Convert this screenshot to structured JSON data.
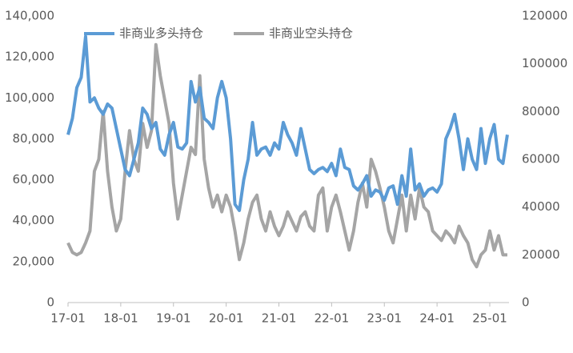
{
  "chart_data": {
    "type": "line",
    "x": [
      "17-01",
      "17-02",
      "17-03",
      "17-04",
      "17-05",
      "17-06",
      "17-07",
      "17-08",
      "17-09",
      "17-10",
      "17-11",
      "17-12",
      "18-01",
      "18-02",
      "18-03",
      "18-04",
      "18-05",
      "18-06",
      "18-07",
      "18-08",
      "18-09",
      "18-10",
      "18-11",
      "18-12",
      "19-01",
      "19-02",
      "19-03",
      "19-04",
      "19-05",
      "19-06",
      "19-07",
      "19-08",
      "19-09",
      "19-10",
      "19-11",
      "19-12",
      "20-01",
      "20-02",
      "20-03",
      "20-04",
      "20-05",
      "20-06",
      "20-07",
      "20-08",
      "20-09",
      "20-10",
      "20-11",
      "20-12",
      "21-01",
      "21-02",
      "21-03",
      "21-04",
      "21-05",
      "21-06",
      "21-07",
      "21-08",
      "21-09",
      "21-10",
      "21-11",
      "21-12",
      "22-01",
      "22-02",
      "22-03",
      "22-04",
      "22-05",
      "22-06",
      "22-07",
      "22-08",
      "22-09",
      "22-10",
      "22-11",
      "22-12",
      "23-01",
      "23-02",
      "23-03",
      "23-04",
      "23-05",
      "23-06",
      "23-07",
      "23-08",
      "23-09",
      "23-10",
      "23-11",
      "23-12",
      "24-01",
      "24-02",
      "24-03",
      "24-04",
      "24-05",
      "24-06",
      "24-07",
      "24-08",
      "24-09",
      "24-10",
      "24-11",
      "24-12",
      "25-01",
      "25-02",
      "25-03",
      "25-04",
      "25-05"
    ],
    "series": [
      {
        "name": "非商业多头持仓",
        "color": "#5b9bd5",
        "values": [
          82000,
          90000,
          105000,
          110000,
          130000,
          98000,
          100000,
          95000,
          92000,
          97000,
          95000,
          85000,
          75000,
          65000,
          62000,
          70000,
          78000,
          95000,
          92000,
          85000,
          88000,
          75000,
          72000,
          82000,
          88000,
          76000,
          75000,
          78000,
          108000,
          98000,
          105000,
          90000,
          88000,
          85000,
          100000,
          108000,
          100000,
          80000,
          48000,
          45000,
          60000,
          70000,
          88000,
          72000,
          75000,
          76000,
          72000,
          78000,
          75000,
          88000,
          82000,
          78000,
          72000,
          85000,
          75000,
          65000,
          63000,
          65000,
          66000,
          64000,
          68000,
          62000,
          75000,
          66000,
          65000,
          57000,
          55000,
          58000,
          62000,
          52000,
          55000,
          54000,
          50000,
          56000,
          57000,
          48000,
          62000,
          52000,
          75000,
          55000,
          58000,
          52000,
          55000,
          56000,
          54000,
          58000,
          80000,
          85000,
          92000,
          80000,
          65000,
          80000,
          70000,
          65000,
          85000,
          68000,
          80000,
          87000,
          70000,
          68000,
          82000
        ]
      },
      {
        "name": "非商业空头持仓",
        "color": "#a5a5a5",
        "axis": "y2",
        "values": [
          25000,
          21000,
          20000,
          21000,
          25000,
          30000,
          55000,
          60000,
          80000,
          55000,
          40000,
          30000,
          35000,
          55000,
          72000,
          60000,
          55000,
          75000,
          65000,
          72000,
          108000,
          95000,
          85000,
          75000,
          50000,
          35000,
          45000,
          55000,
          65000,
          62000,
          95000,
          60000,
          48000,
          40000,
          45000,
          38000,
          45000,
          40000,
          30000,
          18000,
          25000,
          35000,
          42000,
          45000,
          35000,
          30000,
          38000,
          32000,
          28000,
          32000,
          38000,
          34000,
          30000,
          36000,
          38000,
          32000,
          30000,
          45000,
          48000,
          30000,
          40000,
          45000,
          38000,
          30000,
          22000,
          30000,
          42000,
          50000,
          40000,
          60000,
          55000,
          48000,
          40000,
          30000,
          25000,
          35000,
          45000,
          30000,
          45000,
          35000,
          48000,
          40000,
          38000,
          30000,
          28000,
          26000,
          30000,
          28000,
          25000,
          32000,
          28000,
          25000,
          18000,
          15000,
          20000,
          22000,
          30000,
          22000,
          28000,
          20000,
          20000
        ]
      }
    ],
    "ylim": [
      0,
      140000
    ],
    "yticks": [
      0,
      {
        "value": 20000,
        "label": "20,000"
      },
      {
        "value": 40000,
        "label": "40,000"
      },
      {
        "value": 60000,
        "label": "60,000"
      },
      {
        "value": 80000,
        "label": "80,000"
      },
      {
        "value": 100000,
        "label": "100,000"
      },
      {
        "value": 120000,
        "label": "120,000"
      },
      {
        "value": 140000,
        "label": "140,000"
      }
    ],
    "y2lim": [
      0,
      120000
    ],
    "y2ticks": [
      0,
      20000,
      40000,
      60000,
      80000,
      100000,
      120000
    ],
    "xticks": [
      "17-01",
      "18-01",
      "19-01",
      "20-01",
      "21-01",
      "22-01",
      "23-01",
      "24-01",
      "25-01"
    ],
    "legend": "top"
  }
}
